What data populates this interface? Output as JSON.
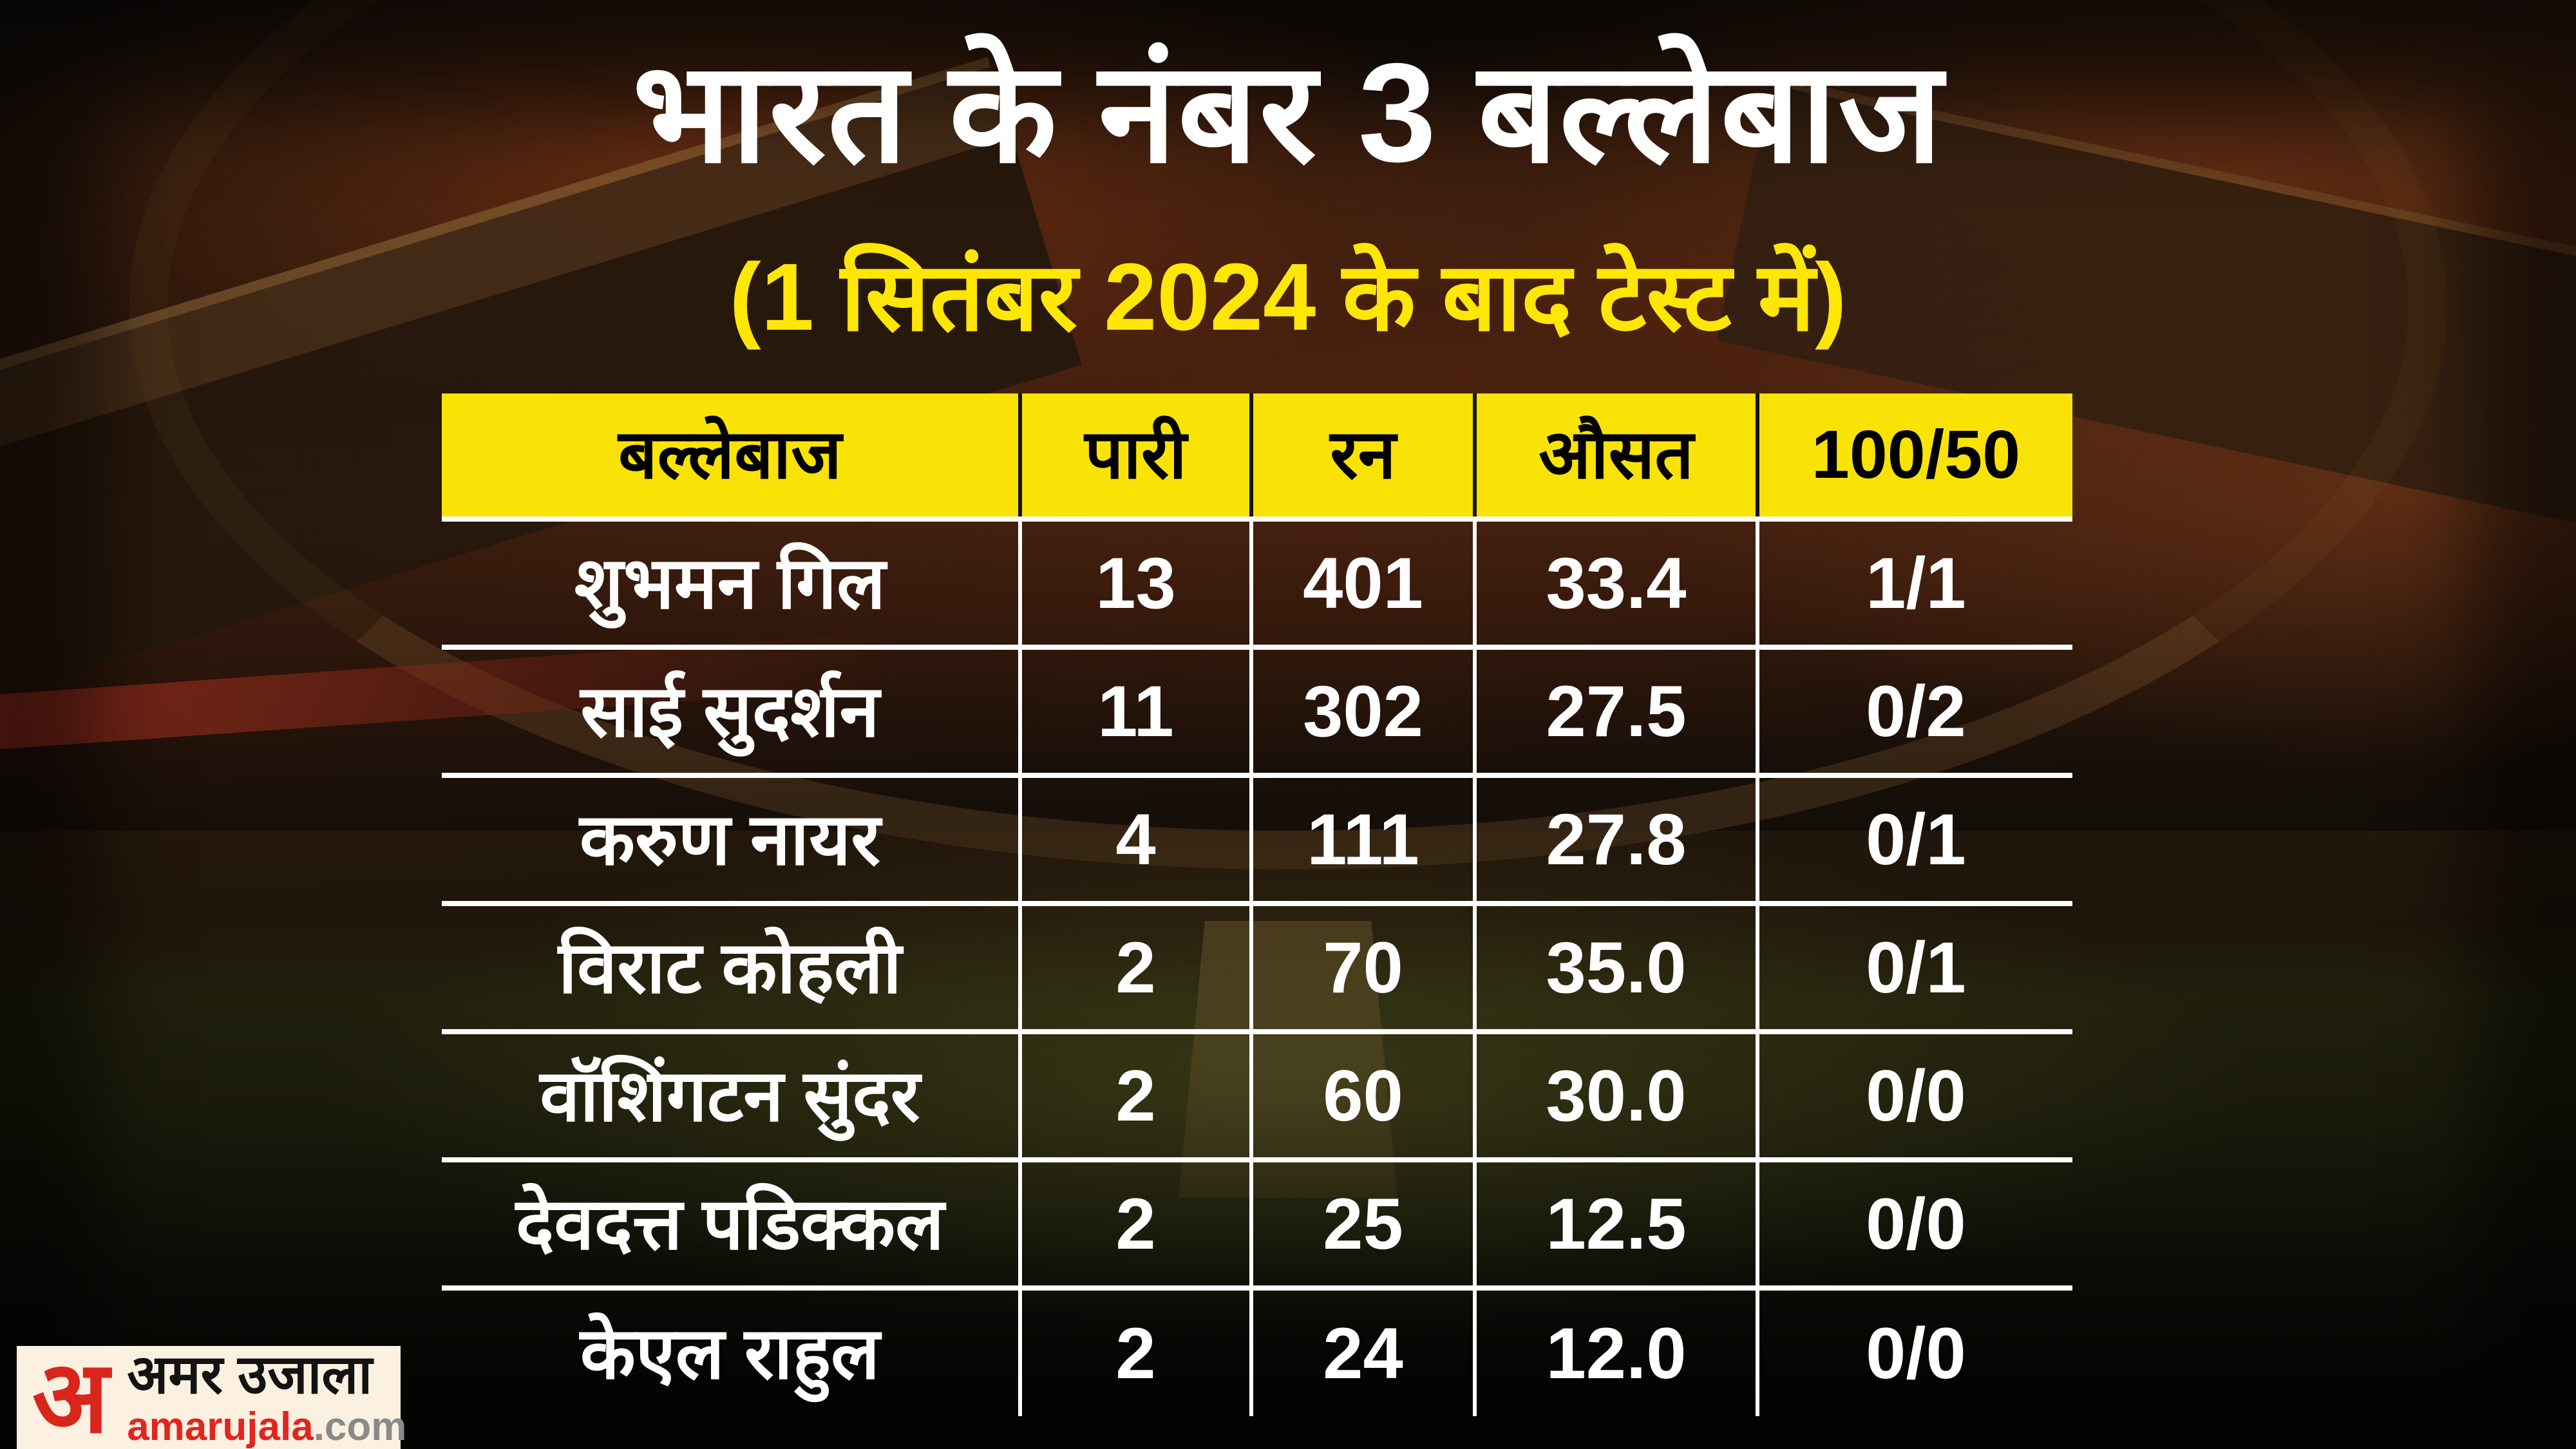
{
  "chart_data": {
    "type": "table",
    "title": "भारत के नंबर 3 बल्लेबाज",
    "subtitle": "(1 सितंबर 2024 के बाद टेस्ट में)",
    "columns": [
      "बल्लेबाज",
      "पारी",
      "रन",
      "औसत",
      "100/50"
    ],
    "rows": [
      [
        "शुभमन गिल",
        "13",
        "401",
        "33.4",
        "1/1"
      ],
      [
        "साई सुदर्शन",
        "11",
        "302",
        "27.5",
        "0/2"
      ],
      [
        "करुण नायर",
        "4",
        "111",
        "27.8",
        "0/1"
      ],
      [
        "विराट कोहली",
        "2",
        "70",
        "35.0",
        "0/1"
      ],
      [
        "वॉशिंगटन सुंदर",
        "2",
        "60",
        "30.0",
        "0/0"
      ],
      [
        "देवदत्त पडिक्कल",
        "2",
        "25",
        "12.5",
        "0/0"
      ],
      [
        "केएल राहुल",
        "2",
        "24",
        "12.0",
        "0/0"
      ]
    ],
    "layout": {
      "header_position": "top",
      "gridlines": true,
      "legend": false
    }
  },
  "logo": {
    "monogram": "अ",
    "brand_hindi": "अमर उजाला",
    "brand_domain": "amarujala",
    "brand_tld": ".com"
  },
  "colors": {
    "title_text": "#ffffff",
    "subtitle_yellow": "#ffe605",
    "header_bg_yellow": "#f9e306",
    "header_text": "#000000",
    "row_text": "#ffffff",
    "grid_line_white": "#ffffff",
    "header_divider_black": "#141414",
    "logo_bg_cream": "#fcf0e0",
    "logo_red": "#d9261c",
    "logo_domain_gray": "#8a8a8a"
  }
}
